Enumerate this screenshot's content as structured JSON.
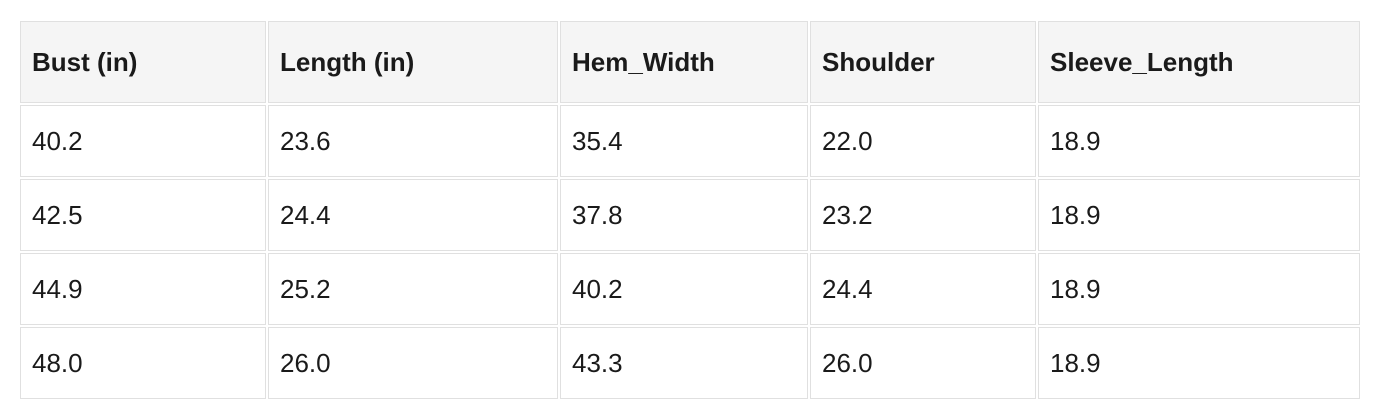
{
  "chart_data": {
    "type": "table",
    "title": "",
    "columns": [
      "Bust (in)",
      "Length (in)",
      "Hem_Width",
      "Shoulder",
      "Sleeve_Length"
    ],
    "rows": [
      [
        "40.2",
        "23.6",
        "35.4",
        "22.0",
        "18.9"
      ],
      [
        "42.5",
        "24.4",
        "37.8",
        "23.2",
        "18.9"
      ],
      [
        "44.9",
        "25.2",
        "40.2",
        "24.4",
        "18.9"
      ],
      [
        "48.0",
        "26.0",
        "43.3",
        "26.0",
        "18.9"
      ]
    ],
    "colors": {
      "header_bg": "#f5f5f5",
      "cell_border": "#e0e0e0",
      "text": "#1a1a1a",
      "page_bg": "#ffffff"
    }
  }
}
